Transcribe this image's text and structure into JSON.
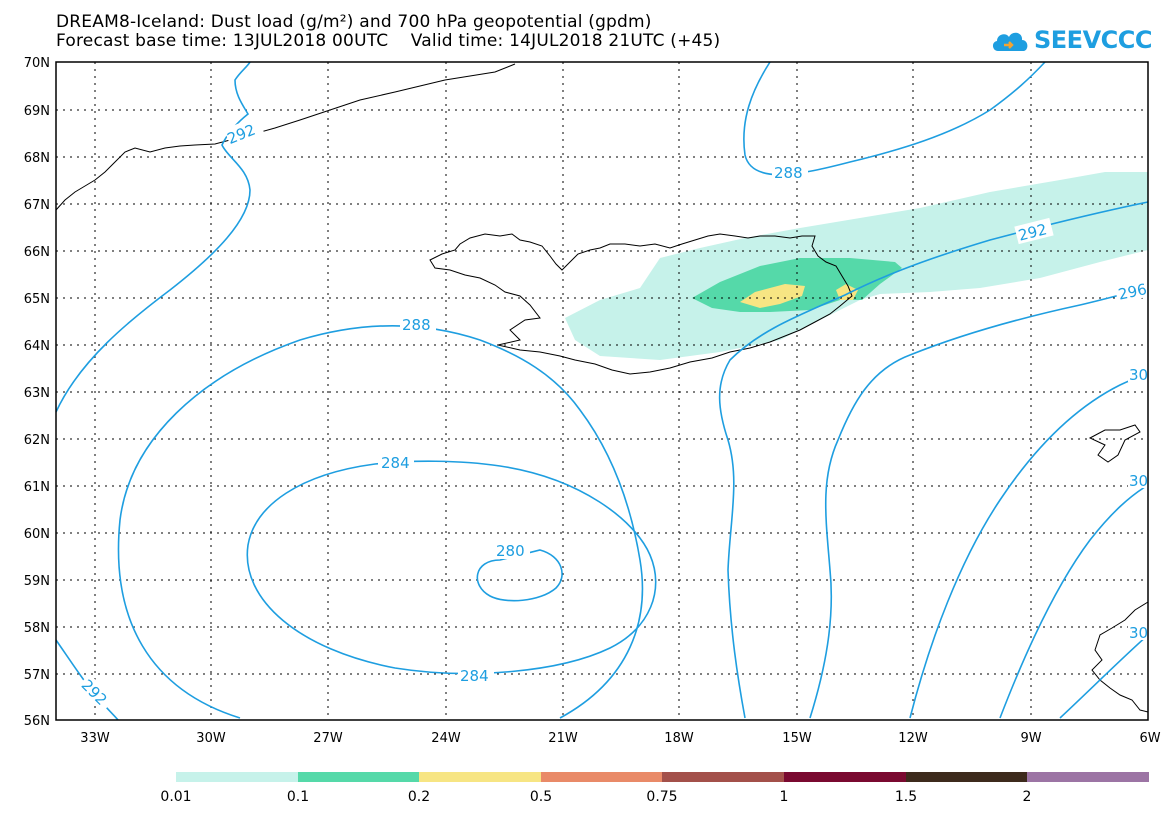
{
  "header": {
    "title_line1": "DREAM8-Iceland: Dust load (g/m²) and 700 hPa geopotential (gpdm)",
    "title_line2": "Forecast base time: 13JUL2018 00UTC    Valid time: 14JUL2018 21UTC (+45)"
  },
  "logo": {
    "text": "SEEVCCC",
    "icon": "cloud-logo-icon",
    "color": "#1e9ee0"
  },
  "map": {
    "lat_labels": [
      "70N",
      "69N",
      "68N",
      "67N",
      "66N",
      "65N",
      "64N",
      "63N",
      "62N",
      "61N",
      "60N",
      "59N",
      "58N",
      "57N",
      "56N"
    ],
    "lon_labels": [
      "33W",
      "30W",
      "27W",
      "24W",
      "21W",
      "18W",
      "15W",
      "12W",
      "9W",
      "6W"
    ],
    "contour_labels": {
      "c280": "280",
      "c284a": "284",
      "c284b": "284",
      "c288a": "288",
      "c288b": "288",
      "c292a": "292",
      "c292b": "292",
      "c292c": "292",
      "c296": "296",
      "c300a": "30",
      "c300b": "30",
      "c300c": "30"
    },
    "contour_color": "#1e9ee0"
  },
  "legend": {
    "colors": [
      "#c6f2ea",
      "#55d9a9",
      "#f7e583",
      "#e98a68",
      "#a3504a",
      "#7a0930",
      "#3d2a1c",
      "#9c74a4"
    ],
    "labels": [
      "0.01",
      "0.1",
      "0.2",
      "0.5",
      "0.75",
      "1",
      "1.5",
      "2"
    ]
  }
}
